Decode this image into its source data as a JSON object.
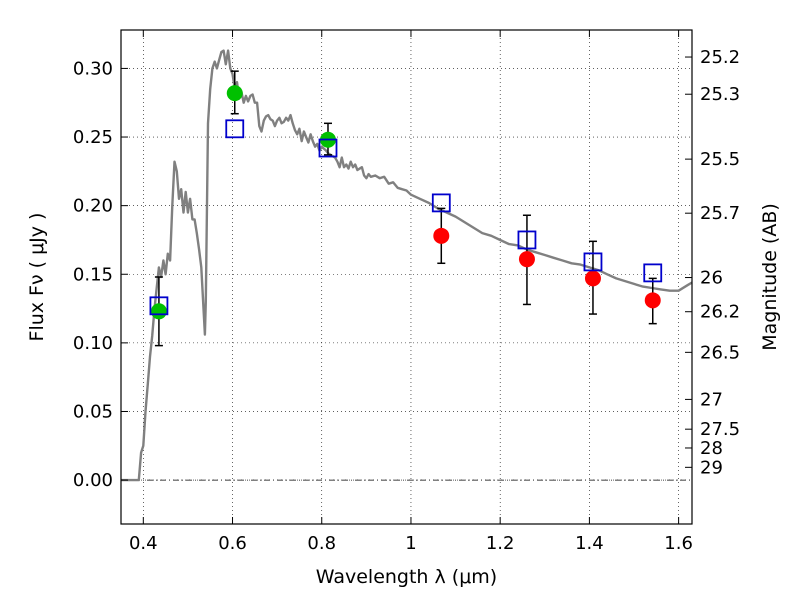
{
  "chart_data": {
    "type": "scatter",
    "title": "",
    "xlabel": "Wavelength  λ (μm)",
    "ylabel": "Flux  Fν  ( μJy )",
    "y2label": "Magnitude (AB)",
    "xlim": [
      0.35,
      1.63
    ],
    "ylim": [
      -0.032,
      0.328
    ],
    "grid": true,
    "x_ticks": [
      0.4,
      0.6,
      0.8,
      1.0,
      1.2,
      1.4,
      1.6
    ],
    "x_tick_labels": [
      "0.4",
      "0.6",
      "0.8",
      "1",
      "1.2",
      "1.4",
      "1.6"
    ],
    "y_ticks": [
      0.0,
      0.05,
      0.1,
      0.15,
      0.2,
      0.25,
      0.3
    ],
    "y_tick_labels": [
      "0.00",
      "0.05",
      "0.10",
      "0.15",
      "0.20",
      "0.25",
      "0.30"
    ],
    "mag_ticks": [
      {
        "label": "25.2",
        "flux": 0.3083
      },
      {
        "label": "25.3",
        "flux": 0.2812
      },
      {
        "label": "25.5",
        "flux": 0.2339
      },
      {
        "label": "25.7",
        "flux": 0.1945
      },
      {
        "label": "26",
        "flux": 0.1476
      },
      {
        "label": "26.2",
        "flux": 0.1227
      },
      {
        "label": "26.5",
        "flux": 0.0931
      },
      {
        "label": "27",
        "flux": 0.0588
      },
      {
        "label": "27.5",
        "flux": 0.0371
      },
      {
        "label": "28",
        "flux": 0.0234
      },
      {
        "label": "29",
        "flux": 0.0093
      }
    ],
    "zero_line": {
      "y": 0.0,
      "style": "dash-dot"
    },
    "colors": {
      "model": "#808080",
      "green": "#00c000",
      "red": "#ff0000",
      "box": "#0000cc",
      "error": "#000000"
    },
    "model_spectrum": [
      [
        0.35,
        0.0
      ],
      [
        0.39,
        0.0
      ],
      [
        0.395,
        0.02
      ],
      [
        0.4,
        0.025
      ],
      [
        0.405,
        0.05
      ],
      [
        0.41,
        0.07
      ],
      [
        0.415,
        0.09
      ],
      [
        0.42,
        0.105
      ],
      [
        0.425,
        0.125
      ],
      [
        0.43,
        0.14
      ],
      [
        0.435,
        0.155
      ],
      [
        0.44,
        0.148
      ],
      [
        0.445,
        0.16
      ],
      [
        0.45,
        0.15
      ],
      [
        0.455,
        0.165
      ],
      [
        0.46,
        0.16
      ],
      [
        0.465,
        0.2
      ],
      [
        0.47,
        0.232
      ],
      [
        0.475,
        0.225
      ],
      [
        0.48,
        0.205
      ],
      [
        0.485,
        0.212
      ],
      [
        0.49,
        0.195
      ],
      [
        0.495,
        0.21
      ],
      [
        0.5,
        0.195
      ],
      [
        0.505,
        0.205
      ],
      [
        0.51,
        0.19
      ],
      [
        0.515,
        0.19
      ],
      [
        0.52,
        0.18
      ],
      [
        0.525,
        0.168
      ],
      [
        0.53,
        0.155
      ],
      [
        0.535,
        0.125
      ],
      [
        0.538,
        0.106
      ],
      [
        0.54,
        0.13
      ],
      [
        0.545,
        0.26
      ],
      [
        0.55,
        0.285
      ],
      [
        0.555,
        0.3
      ],
      [
        0.56,
        0.305
      ],
      [
        0.565,
        0.3
      ],
      [
        0.57,
        0.306
      ],
      [
        0.575,
        0.312
      ],
      [
        0.58,
        0.313
      ],
      [
        0.585,
        0.303
      ],
      [
        0.59,
        0.313
      ],
      [
        0.595,
        0.3
      ],
      [
        0.6,
        0.296
      ],
      [
        0.605,
        0.285
      ],
      [
        0.61,
        0.29
      ],
      [
        0.615,
        0.278
      ],
      [
        0.62,
        0.283
      ],
      [
        0.625,
        0.275
      ],
      [
        0.63,
        0.28
      ],
      [
        0.635,
        0.276
      ],
      [
        0.64,
        0.28
      ],
      [
        0.645,
        0.281
      ],
      [
        0.65,
        0.275
      ],
      [
        0.655,
        0.275
      ],
      [
        0.66,
        0.258
      ],
      [
        0.665,
        0.254
      ],
      [
        0.67,
        0.262
      ],
      [
        0.675,
        0.265
      ],
      [
        0.68,
        0.266
      ],
      [
        0.685,
        0.263
      ],
      [
        0.69,
        0.262
      ],
      [
        0.695,
        0.258
      ],
      [
        0.7,
        0.262
      ],
      [
        0.705,
        0.264
      ],
      [
        0.71,
        0.26
      ],
      [
        0.715,
        0.261
      ],
      [
        0.72,
        0.264
      ],
      [
        0.725,
        0.262
      ],
      [
        0.73,
        0.266
      ],
      [
        0.735,
        0.26
      ],
      [
        0.74,
        0.255
      ],
      [
        0.745,
        0.252
      ],
      [
        0.75,
        0.256
      ],
      [
        0.755,
        0.247
      ],
      [
        0.76,
        0.254
      ],
      [
        0.765,
        0.25
      ],
      [
        0.77,
        0.246
      ],
      [
        0.775,
        0.252
      ],
      [
        0.78,
        0.247
      ],
      [
        0.785,
        0.243
      ],
      [
        0.79,
        0.245
      ],
      [
        0.795,
        0.24
      ],
      [
        0.8,
        0.243
      ],
      [
        0.81,
        0.24
      ],
      [
        0.815,
        0.238
      ],
      [
        0.82,
        0.237
      ],
      [
        0.83,
        0.235
      ],
      [
        0.835,
        0.232
      ],
      [
        0.84,
        0.228
      ],
      [
        0.845,
        0.235
      ],
      [
        0.85,
        0.228
      ],
      [
        0.855,
        0.23
      ],
      [
        0.86,
        0.227
      ],
      [
        0.865,
        0.232
      ],
      [
        0.87,
        0.228
      ],
      [
        0.875,
        0.23
      ],
      [
        0.88,
        0.226
      ],
      [
        0.89,
        0.228
      ],
      [
        0.895,
        0.222
      ],
      [
        0.9,
        0.22
      ],
      [
        0.905,
        0.223
      ],
      [
        0.91,
        0.221
      ],
      [
        0.92,
        0.222
      ],
      [
        0.93,
        0.22
      ],
      [
        0.94,
        0.221
      ],
      [
        0.95,
        0.216
      ],
      [
        0.96,
        0.217
      ],
      [
        0.97,
        0.213
      ],
      [
        0.98,
        0.212
      ],
      [
        0.99,
        0.211
      ],
      [
        1.0,
        0.208
      ],
      [
        1.02,
        0.205
      ],
      [
        1.04,
        0.202
      ],
      [
        1.06,
        0.198
      ],
      [
        1.08,
        0.195
      ],
      [
        1.1,
        0.192
      ],
      [
        1.12,
        0.188
      ],
      [
        1.14,
        0.184
      ],
      [
        1.16,
        0.18
      ],
      [
        1.18,
        0.178
      ],
      [
        1.2,
        0.175
      ],
      [
        1.22,
        0.172
      ],
      [
        1.24,
        0.171
      ],
      [
        1.26,
        0.168
      ],
      [
        1.28,
        0.166
      ],
      [
        1.3,
        0.164
      ],
      [
        1.32,
        0.162
      ],
      [
        1.34,
        0.16
      ],
      [
        1.36,
        0.158
      ],
      [
        1.38,
        0.157
      ],
      [
        1.4,
        0.155
      ],
      [
        1.42,
        0.153
      ],
      [
        1.44,
        0.15
      ],
      [
        1.46,
        0.147
      ],
      [
        1.48,
        0.145
      ],
      [
        1.5,
        0.143
      ],
      [
        1.52,
        0.141
      ],
      [
        1.54,
        0.14
      ],
      [
        1.56,
        0.139
      ],
      [
        1.58,
        0.138
      ],
      [
        1.6,
        0.138
      ],
      [
        1.62,
        0.142
      ],
      [
        1.63,
        0.144
      ]
    ],
    "series": [
      {
        "marker": "circle",
        "color": "#00c000",
        "points": [
          {
            "x": 0.435,
            "y": 0.123,
            "err_low": 0.098,
            "err_high": 0.148
          },
          {
            "x": 0.605,
            "y": 0.282,
            "err_low": 0.267,
            "err_high": 0.298
          },
          {
            "x": 0.814,
            "y": 0.248,
            "err_low": 0.237,
            "err_high": 0.26
          }
        ]
      },
      {
        "marker": "circle",
        "color": "#ff0000",
        "points": [
          {
            "x": 1.068,
            "y": 0.178,
            "err_low": 0.158,
            "err_high": 0.198
          },
          {
            "x": 1.26,
            "y": 0.161,
            "err_low": 0.128,
            "err_high": 0.193
          },
          {
            "x": 1.408,
            "y": 0.147,
            "err_low": 0.121,
            "err_high": 0.174
          },
          {
            "x": 1.542,
            "y": 0.131,
            "err_low": 0.114,
            "err_high": 0.147
          }
        ]
      },
      {
        "marker": "square-open",
        "color": "#0000cc",
        "points": [
          {
            "x": 0.435,
            "y": 0.127
          },
          {
            "x": 0.605,
            "y": 0.256
          },
          {
            "x": 0.814,
            "y": 0.242
          },
          {
            "x": 1.068,
            "y": 0.202
          },
          {
            "x": 1.26,
            "y": 0.175
          },
          {
            "x": 1.408,
            "y": 0.159
          },
          {
            "x": 1.542,
            "y": 0.151
          }
        ]
      }
    ]
  }
}
